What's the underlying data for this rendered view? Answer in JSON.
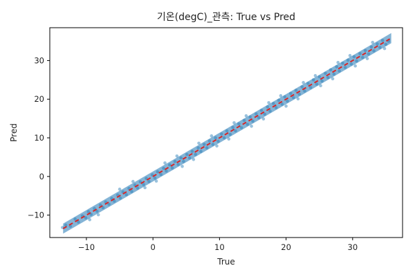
{
  "chart_data": {
    "type": "scatter",
    "title": "기온(degC)_관측: True vs Pred",
    "xlabel": "True",
    "ylabel": "Pred",
    "xlim": [
      -15.5,
      37.5
    ],
    "ylim": [
      -15.8,
      38.5
    ],
    "xticks": [
      -10,
      0,
      10,
      20,
      30
    ],
    "yticks": [
      -10,
      0,
      10,
      20,
      30
    ],
    "grid": false,
    "colors": {
      "points": "#1f77b4",
      "reference_line": "#d62728"
    },
    "reference_line": {
      "style": "dashed",
      "from": [
        -13.5,
        -13.5
      ],
      "to": [
        35.8,
        35.8
      ]
    },
    "points": {
      "x": [
        -13.6,
        -13.1,
        -12.4,
        -11.7,
        -11.2,
        -10.6,
        -10.1,
        -9.7,
        -9.3,
        -8.8,
        -8.4,
        -7.9,
        -7.5,
        -7.1,
        -6.6,
        -6.2,
        -5.8,
        -5.3,
        -4.9,
        -4.5,
        -4.0,
        -3.6,
        -3.2,
        -2.7,
        -2.3,
        -1.9,
        -1.4,
        -1.0,
        -0.6,
        -0.1,
        0.3,
        0.7,
        1.2,
        1.6,
        2.0,
        2.5,
        2.9,
        3.3,
        3.8,
        4.2,
        4.6,
        5.1,
        5.5,
        5.9,
        6.4,
        6.8,
        7.2,
        7.7,
        8.1,
        8.5,
        9.0,
        9.4,
        9.8,
        10.3,
        10.7,
        11.1,
        11.6,
        12.0,
        12.4,
        12.9,
        13.3,
        13.7,
        14.2,
        14.6,
        15.0,
        15.5,
        15.9,
        16.3,
        16.8,
        17.2,
        17.6,
        18.1,
        18.5,
        18.9,
        19.4,
        19.8,
        20.2,
        20.7,
        21.1,
        21.5,
        22.0,
        22.4,
        22.8,
        23.3,
        23.7,
        24.1,
        24.6,
        25.0,
        25.4,
        25.9,
        26.3,
        26.7,
        27.2,
        27.6,
        28.0,
        28.5,
        28.9,
        29.3,
        29.8,
        30.2,
        30.6,
        31.1,
        31.5,
        31.9,
        32.4,
        32.8,
        33.2,
        33.7,
        34.1,
        34.5,
        35.0,
        35.4,
        -9.5,
        -5.0,
        -1.2,
        1.8,
        4.4,
        6.9,
        9.6,
        12.2,
        14.8,
        17.4,
        20.0,
        22.6,
        25.2,
        27.8,
        30.4,
        33.0,
        -8.2,
        -3.0,
        0.5,
        3.6,
        6.1,
        8.8,
        11.4,
        14.0,
        16.6,
        19.2,
        21.8,
        24.4,
        27.0,
        29.6,
        32.2,
        34.8
      ],
      "y": [
        -13.2,
        -12.6,
        -12.9,
        -11.0,
        -11.8,
        -10.2,
        -10.7,
        -9.1,
        -9.8,
        -8.3,
        -9.0,
        -7.4,
        -8.1,
        -6.6,
        -7.2,
        -5.7,
        -6.4,
        -4.8,
        -5.6,
        -4.0,
        -4.7,
        -3.1,
        -3.9,
        -2.2,
        -3.0,
        -1.4,
        -2.1,
        -0.5,
        -1.3,
        0.4,
        -0.4,
        1.2,
        0.5,
        2.1,
        1.4,
        3.0,
        2.2,
        3.9,
        3.1,
        4.8,
        3.9,
        5.7,
        4.8,
        6.5,
        5.7,
        7.4,
        6.5,
        8.3,
        7.4,
        9.2,
        8.3,
        10.0,
        9.1,
        11.0,
        10.0,
        11.8,
        10.9,
        12.7,
        11.8,
        13.6,
        12.6,
        14.5,
        13.5,
        15.4,
        14.3,
        16.2,
        15.2,
        17.1,
        16.1,
        18.0,
        16.9,
        18.9,
        17.8,
        19.7,
        18.7,
        20.6,
        19.5,
        21.5,
        20.4,
        22.3,
        21.3,
        23.2,
        22.1,
        24.1,
        23.0,
        25.0,
        23.9,
        25.8,
        24.7,
        26.7,
        25.6,
        27.6,
        26.5,
        28.4,
        27.3,
        29.3,
        28.2,
        30.1,
        29.1,
        31.0,
        29.9,
        31.8,
        30.8,
        32.6,
        31.7,
        33.5,
        32.5,
        34.3,
        33.4,
        35.2,
        34.2,
        35.0,
        -11.2,
        -3.3,
        -2.9,
        3.5,
        2.6,
        8.6,
        7.9,
        13.9,
        13.0,
        19.1,
        18.2,
        24.3,
        23.5,
        29.5,
        28.6,
        34.7,
        -9.9,
        -1.3,
        -1.2,
        5.3,
        4.4,
        10.5,
        9.7,
        15.7,
        14.9,
        20.9,
        20.1,
        26.1,
        25.3,
        31.3,
        30.5,
        33.1
      ]
    }
  }
}
